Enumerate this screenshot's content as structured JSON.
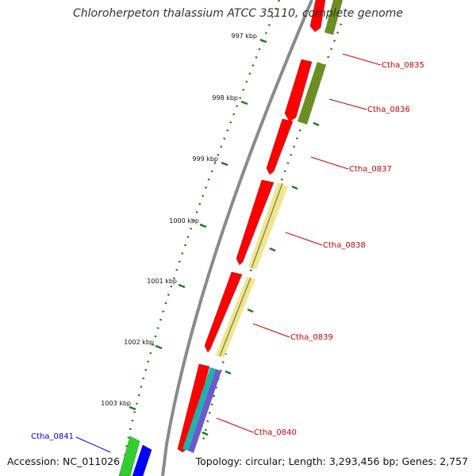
{
  "title": "Chloroherpeton thalassium ATCC 35110, complete genome",
  "footer": {
    "accession": "Accession: NC_011026",
    "topology": "Topology: circular; Length: 3,293,456 bp; Genes: 2,757"
  },
  "colors": {
    "backbone": "#8a8a8a",
    "tick": "#1e7a1e",
    "label_forward": "#cc0000",
    "label_reverse": "#0000cc",
    "cds_red": "#ff0000",
    "olive": "#6b8e23",
    "khaki": "#f0e68c",
    "teal": "#20b2aa",
    "slate": "#6a5acd",
    "green": "#32cd32",
    "blue": "#0000ff"
  },
  "ticks": [
    {
      "label": "997 kbp",
      "kbp": 997
    },
    {
      "label": "998 kbp",
      "kbp": 998
    },
    {
      "label": "999 kbp",
      "kbp": 999
    },
    {
      "label": "1000 kbp",
      "kbp": 1000
    },
    {
      "label": "1001 kbp",
      "kbp": 1001
    },
    {
      "label": "1002 kbp",
      "kbp": 1002
    },
    {
      "label": "1003 kbp",
      "kbp": 1003
    }
  ],
  "genes": [
    {
      "label": "Ctha_0835",
      "strand": "forward"
    },
    {
      "label": "Ctha_0836",
      "strand": "forward"
    },
    {
      "label": "Ctha_0837",
      "strand": "forward"
    },
    {
      "label": "Ctha_0838",
      "strand": "forward"
    },
    {
      "label": "Ctha_0839",
      "strand": "forward"
    },
    {
      "label": "Ctha_0840",
      "strand": "forward"
    },
    {
      "label": "Ctha_0841",
      "strand": "reverse"
    }
  ]
}
